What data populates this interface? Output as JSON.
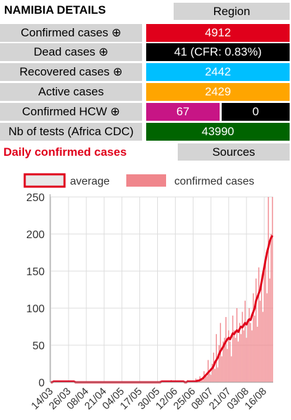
{
  "header": {
    "title": "NAMIBIA DETAILS",
    "region_label": "Region"
  },
  "stats": [
    {
      "label": "Confirmed cases ⊕",
      "value": "4912",
      "color": "#e0001b"
    },
    {
      "label": "Dead cases ⊕",
      "value": "41 (CFR: 0.83%)",
      "color": "#000000"
    },
    {
      "label": "Recovered cases ⊕",
      "value": "2442",
      "color": "#00bfff"
    },
    {
      "label": "Active cases",
      "value": "2429",
      "color": "#ffa500"
    }
  ],
  "hcw": {
    "label": "Confirmed HCW ⊕",
    "value_a": "67",
    "value_b": "0",
    "color_a": "#c71585",
    "color_b": "#000000"
  },
  "tests": {
    "label": "Nb of tests (Africa CDC)",
    "value": "43990",
    "color": "#006400"
  },
  "section": {
    "title": "Daily confirmed cases",
    "sources_label": "Sources"
  },
  "chart_data": {
    "type": "bar",
    "legend": [
      {
        "name": "average",
        "color": "#e0001b"
      },
      {
        "name": "confirmed cases",
        "color": "#f0868c"
      }
    ],
    "legend_position": "top",
    "grid": true,
    "ylim": [
      0,
      250
    ],
    "yticks": [
      0,
      50,
      100,
      150,
      200,
      250
    ],
    "xticks": [
      "14/03",
      "26/03",
      "08/04",
      "21/04",
      "04/05",
      "17/05",
      "30/05",
      "12/06",
      "25/06",
      "08/07",
      "21/07",
      "03/08",
      "16/08"
    ],
    "start_date": "2020-03-14",
    "daily": [
      0,
      0,
      2,
      0,
      0,
      0,
      0,
      0,
      0,
      0,
      0,
      0,
      0,
      1,
      0,
      0,
      0,
      0,
      0,
      0,
      0,
      0,
      0,
      0,
      0,
      0,
      0,
      0,
      0,
      0,
      0,
      0,
      0,
      0,
      0,
      0,
      0,
      0,
      0,
      0,
      0,
      0,
      0,
      0,
      0,
      0,
      0,
      0,
      0,
      0,
      0,
      0,
      0,
      0,
      0,
      0,
      0,
      0,
      0,
      0,
      0,
      0,
      0,
      0,
      0,
      0,
      0,
      0,
      0,
      0,
      0,
      0,
      0,
      0,
      0,
      0,
      0,
      0,
      0,
      0,
      2,
      0,
      0,
      0,
      1,
      0,
      0,
      0,
      3,
      0,
      1,
      0,
      0,
      2,
      0,
      0,
      0,
      0,
      0,
      0,
      3,
      0,
      0,
      0,
      0,
      0,
      5,
      2,
      0,
      8,
      4,
      3,
      15,
      10,
      8,
      30,
      12,
      10,
      25,
      40,
      18,
      65,
      20,
      50,
      80,
      35,
      55,
      60,
      88,
      45,
      70,
      55,
      35,
      90,
      70,
      60,
      100,
      55,
      80,
      65,
      95,
      70,
      110,
      60,
      85,
      100,
      80,
      70,
      120,
      90,
      140,
      75,
      155,
      110,
      130,
      95,
      150,
      170,
      120,
      250,
      140,
      200,
      250
    ],
    "average": [
      0,
      0,
      1,
      1,
      1,
      1,
      1,
      1,
      1,
      1,
      1,
      1,
      1,
      1,
      1,
      1,
      1,
      1,
      0,
      0,
      0,
      0,
      0,
      0,
      0,
      0,
      0,
      0,
      0,
      0,
      0,
      0,
      0,
      0,
      0,
      0,
      0,
      0,
      0,
      0,
      0,
      0,
      0,
      0,
      0,
      0,
      0,
      0,
      0,
      0,
      0,
      0,
      0,
      0,
      0,
      0,
      0,
      0,
      0,
      0,
      0,
      0,
      0,
      0,
      0,
      0,
      0,
      0,
      0,
      0,
      0,
      0,
      0,
      0,
      0,
      0,
      0,
      0,
      0,
      0,
      0,
      1,
      1,
      1,
      1,
      1,
      1,
      1,
      1,
      1,
      1,
      1,
      1,
      1,
      1,
      1,
      1,
      1,
      0,
      0,
      1,
      1,
      1,
      1,
      1,
      1,
      1,
      2,
      2,
      3,
      4,
      5,
      7,
      9,
      11,
      13,
      15,
      17,
      19,
      22,
      27,
      30,
      33,
      38,
      42,
      45,
      48,
      52,
      55,
      58,
      60,
      58,
      62,
      66,
      65,
      68,
      70,
      68,
      72,
      75,
      74,
      77,
      80,
      78,
      82,
      85,
      84,
      90,
      95,
      100,
      110,
      115,
      120,
      125,
      135,
      145,
      155,
      165,
      175,
      182,
      190,
      195,
      198
    ]
  }
}
